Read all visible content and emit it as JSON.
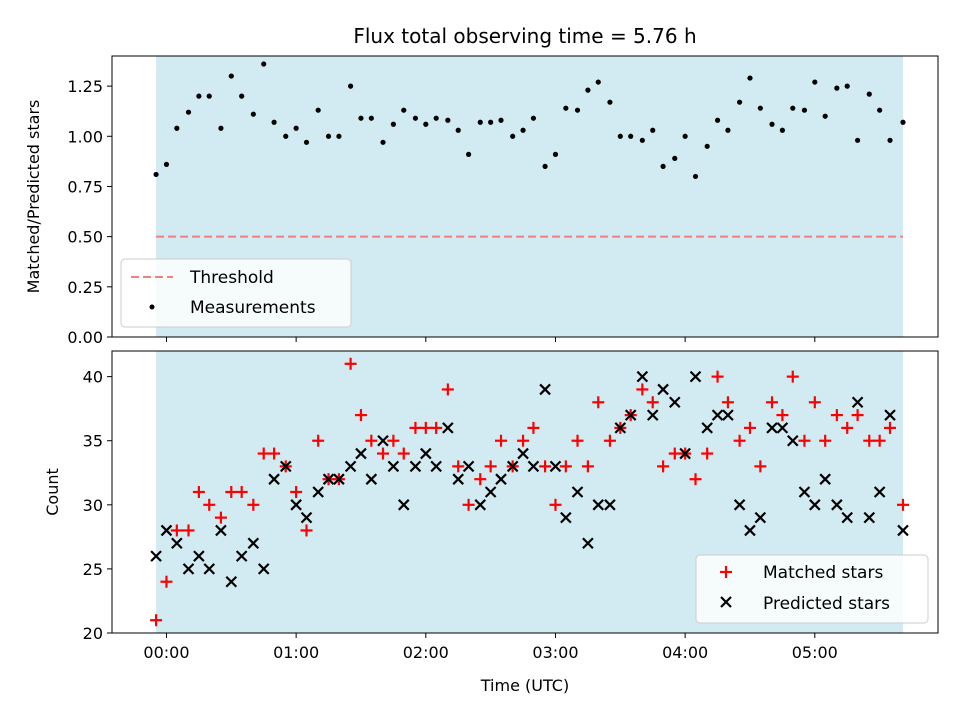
{
  "title": "Flux total observing time = 5.76 h",
  "colors": {
    "band": "#add8e6",
    "threshold": "#f08080",
    "measurement": "#000000",
    "matched": "#ff0000",
    "predicted": "#000000"
  },
  "chart_data": [
    {
      "type": "scatter",
      "ylabel": "Matched/Predicted stars",
      "ylim": [
        0,
        1.4
      ],
      "yticks": [
        0.0,
        0.25,
        0.5,
        0.75,
        1.0,
        1.25
      ],
      "ytick_labels": [
        "0.00",
        "0.25",
        "0.50",
        "0.75",
        "1.00",
        "1.25"
      ],
      "xlim": [
        -0.42,
        5.95
      ],
      "xticks": [
        0,
        1,
        2,
        3,
        4,
        5
      ],
      "shaded_span": [
        -0.08,
        5.68
      ],
      "threshold": {
        "label": "Threshold",
        "value": 0.5
      },
      "legend_position": "lower-left",
      "series": [
        {
          "name": "Measurements",
          "x": [
            -0.08,
            -0.0,
            0.08,
            0.17,
            0.25,
            0.33,
            0.42,
            0.5,
            0.58,
            0.67,
            0.75,
            0.83,
            0.92,
            1.0,
            1.08,
            1.17,
            1.25,
            1.33,
            1.42,
            1.5,
            1.58,
            1.67,
            1.75,
            1.83,
            1.92,
            2.0,
            2.08,
            2.17,
            2.25,
            2.33,
            2.42,
            2.5,
            2.58,
            2.67,
            2.75,
            2.83,
            2.92,
            3.0,
            3.08,
            3.17,
            3.25,
            3.33,
            3.42,
            3.5,
            3.58,
            3.67,
            3.75,
            3.83,
            3.92,
            4.0,
            4.08,
            4.17,
            4.25,
            4.33,
            4.42,
            4.5,
            4.58,
            4.67,
            4.75,
            4.83,
            4.92,
            5.0,
            5.08,
            5.17,
            5.25,
            5.33,
            5.42,
            5.5,
            5.58,
            5.68
          ],
          "y": [
            0.81,
            0.86,
            1.04,
            1.12,
            1.2,
            1.2,
            1.04,
            1.3,
            1.2,
            1.11,
            1.36,
            1.07,
            1.0,
            1.04,
            0.97,
            1.13,
            1.0,
            1.0,
            1.25,
            1.09,
            1.09,
            0.97,
            1.06,
            1.13,
            1.09,
            1.06,
            1.09,
            1.08,
            1.03,
            0.91,
            1.07,
            1.07,
            1.08,
            1.0,
            1.03,
            1.09,
            0.85,
            0.91,
            1.14,
            1.13,
            1.23,
            1.27,
            1.17,
            1.0,
            1.0,
            0.98,
            1.03,
            0.85,
            0.89,
            1.0,
            0.8,
            0.95,
            1.08,
            1.03,
            1.17,
            1.29,
            1.14,
            1.06,
            1.03,
            1.14,
            1.13,
            1.27,
            1.1,
            1.24,
            1.25,
            0.98,
            1.21,
            1.13,
            0.98,
            1.07
          ]
        }
      ]
    },
    {
      "type": "scatter",
      "xlabel": "Time (UTC)",
      "ylabel": "Count",
      "ylim": [
        20,
        42
      ],
      "yticks": [
        20,
        25,
        30,
        35,
        40
      ],
      "ytick_labels": [
        "20",
        "25",
        "30",
        "35",
        "40"
      ],
      "xlim": [
        -0.42,
        5.95
      ],
      "xticks": [
        0,
        1,
        2,
        3,
        4,
        5
      ],
      "xtick_labels": [
        "00:00",
        "01:00",
        "02:00",
        "03:00",
        "04:00",
        "05:00"
      ],
      "shaded_span": [
        -0.08,
        5.68
      ],
      "legend_position": "lower-right",
      "series": [
        {
          "name": "Matched stars",
          "marker": "plus",
          "x": [
            -0.08,
            -0.0,
            0.08,
            0.17,
            0.25,
            0.33,
            0.42,
            0.5,
            0.58,
            0.67,
            0.75,
            0.83,
            0.92,
            1.0,
            1.08,
            1.17,
            1.25,
            1.33,
            1.42,
            1.5,
            1.58,
            1.67,
            1.75,
            1.83,
            1.92,
            2.0,
            2.08,
            2.17,
            2.25,
            2.33,
            2.42,
            2.5,
            2.58,
            2.67,
            2.75,
            2.83,
            2.92,
            3.0,
            3.08,
            3.17,
            3.25,
            3.33,
            3.42,
            3.5,
            3.58,
            3.67,
            3.75,
            3.83,
            3.92,
            4.0,
            4.08,
            4.17,
            4.25,
            4.33,
            4.42,
            4.5,
            4.58,
            4.67,
            4.75,
            4.83,
            4.92,
            5.0,
            5.08,
            5.17,
            5.25,
            5.33,
            5.42,
            5.5,
            5.58,
            5.68
          ],
          "y": [
            21,
            24,
            28,
            28,
            31,
            30,
            29,
            31,
            31,
            30,
            34,
            34,
            33,
            31,
            28,
            35,
            32,
            32,
            41,
            37,
            35,
            34,
            35,
            34,
            36,
            36,
            36,
            39,
            33,
            30,
            32,
            33,
            35,
            33,
            35,
            36,
            33,
            30,
            33,
            35,
            33,
            38,
            35,
            36,
            37,
            39,
            38,
            33,
            34,
            34,
            32,
            34,
            40,
            38,
            35,
            36,
            33,
            38,
            37,
            40,
            35,
            38,
            35,
            37,
            36,
            37,
            35,
            35,
            36,
            30
          ]
        },
        {
          "name": "Predicted stars",
          "marker": "x",
          "x": [
            -0.08,
            -0.0,
            0.08,
            0.17,
            0.25,
            0.33,
            0.42,
            0.5,
            0.58,
            0.67,
            0.75,
            0.83,
            0.92,
            1.0,
            1.08,
            1.17,
            1.25,
            1.33,
            1.42,
            1.5,
            1.58,
            1.67,
            1.75,
            1.83,
            1.92,
            2.0,
            2.08,
            2.17,
            2.25,
            2.33,
            2.42,
            2.5,
            2.58,
            2.67,
            2.75,
            2.83,
            2.92,
            3.0,
            3.08,
            3.17,
            3.25,
            3.33,
            3.42,
            3.5,
            3.58,
            3.67,
            3.75,
            3.83,
            3.92,
            4.0,
            4.08,
            4.17,
            4.25,
            4.33,
            4.42,
            4.5,
            4.58,
            4.67,
            4.75,
            4.83,
            4.92,
            5.0,
            5.08,
            5.17,
            5.25,
            5.33,
            5.42,
            5.5,
            5.58,
            5.68
          ],
          "y": [
            26,
            28,
            27,
            25,
            26,
            25,
            28,
            24,
            26,
            27,
            25,
            32,
            33,
            30,
            29,
            31,
            32,
            32,
            33,
            34,
            32,
            35,
            33,
            30,
            33,
            34,
            33,
            36,
            32,
            33,
            30,
            31,
            32,
            33,
            34,
            33,
            39,
            33,
            29,
            31,
            27,
            30,
            30,
            36,
            37,
            40,
            37,
            39,
            38,
            34,
            40,
            36,
            37,
            37,
            30,
            28,
            29,
            36,
            36,
            35,
            31,
            30,
            32,
            30,
            29,
            38,
            29,
            31,
            37,
            28
          ]
        }
      ]
    }
  ]
}
